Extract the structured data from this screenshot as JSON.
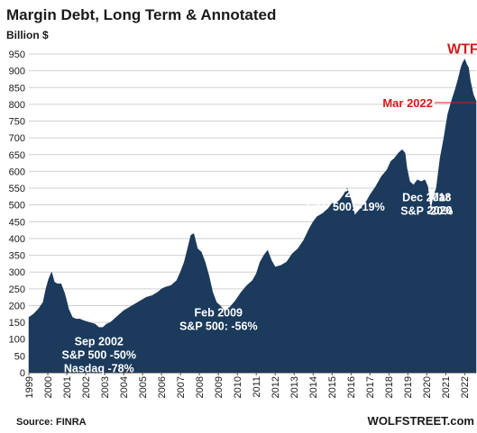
{
  "chart_data": {
    "type": "area",
    "title": "Margin Debt, Long Term & Annotated",
    "ylabel": "Billion $",
    "ylim": [
      0,
      950
    ],
    "yticks": [
      0,
      50,
      100,
      150,
      200,
      250,
      300,
      350,
      400,
      450,
      500,
      550,
      600,
      650,
      700,
      750,
      800,
      850,
      900,
      950
    ],
    "xlim": [
      1999.0,
      2022.6
    ],
    "xticks": [
      "1999",
      "2000",
      "2001",
      "2002",
      "2003",
      "2004",
      "2005",
      "2006",
      "2007",
      "2008",
      "2009",
      "2010",
      "2011",
      "2012",
      "2013",
      "2014",
      "2015",
      "2016",
      "2017",
      "2018",
      "2019",
      "2020",
      "2021",
      "2022"
    ],
    "grid": true,
    "color": "#1b3a5c",
    "series": [
      {
        "x": [
          1999.0,
          1999.25,
          1999.5,
          1999.75,
          1999.9,
          2000.05,
          2000.2,
          2000.35,
          2000.5,
          2000.7,
          2000.9,
          2001.1,
          2001.3,
          2001.5,
          2001.7,
          2001.9,
          2002.2,
          2002.5,
          2002.7,
          2002.9,
          2003.1,
          2003.3,
          2003.5,
          2003.8,
          2004.0,
          2004.3,
          2004.6,
          2004.9,
          2005.2,
          2005.5,
          2005.8,
          2006.0,
          2006.2,
          2006.5,
          2006.8,
          2007.0,
          2007.2,
          2007.4,
          2007.55,
          2007.7,
          2007.9,
          2008.1,
          2008.3,
          2008.5,
          2008.7,
          2008.9,
          2009.1,
          2009.3,
          2009.6,
          2009.9,
          2010.2,
          2010.5,
          2010.8,
          2011.0,
          2011.2,
          2011.4,
          2011.6,
          2011.8,
          2012.0,
          2012.3,
          2012.6,
          2012.9,
          2013.2,
          2013.5,
          2013.8,
          2014.0,
          2014.2,
          2014.5,
          2014.8,
          2015.0,
          2015.2,
          2015.4,
          2015.6,
          2015.8,
          2016.0,
          2016.2,
          2016.5,
          2016.8,
          2017.0,
          2017.3,
          2017.6,
          2017.9,
          2018.1,
          2018.3,
          2018.5,
          2018.7,
          2018.85,
          2018.95,
          2019.1,
          2019.3,
          2019.5,
          2019.7,
          2019.9,
          2020.05,
          2020.2,
          2020.35,
          2020.5,
          2020.7,
          2020.9,
          2021.1,
          2021.3,
          2021.5,
          2021.65,
          2021.8,
          2021.9,
          2022.0,
          2022.1,
          2022.2,
          2022.3,
          2022.45,
          2022.6
        ],
        "y": [
          165,
          175,
          190,
          210,
          250,
          280,
          300,
          270,
          265,
          265,
          235,
          190,
          165,
          160,
          160,
          155,
          150,
          145,
          135,
          135,
          145,
          150,
          160,
          175,
          185,
          195,
          205,
          215,
          225,
          230,
          240,
          250,
          255,
          260,
          275,
          300,
          330,
          375,
          410,
          415,
          370,
          360,
          330,
          290,
          240,
          210,
          200,
          185,
          195,
          215,
          240,
          260,
          275,
          295,
          330,
          350,
          365,
          335,
          315,
          320,
          330,
          355,
          370,
          395,
          430,
          450,
          465,
          475,
          490,
          505,
          505,
          515,
          530,
          550,
          515,
          470,
          490,
          510,
          530,
          555,
          585,
          605,
          630,
          640,
          655,
          665,
          655,
          610,
          570,
          560,
          575,
          570,
          575,
          555,
          480,
          525,
          550,
          640,
          700,
          770,
          810,
          845,
          875,
          910,
          925,
          935,
          920,
          910,
          870,
          830,
          810
        ]
      }
    ],
    "annotations": [
      {
        "lines": [
          "Sep 2002",
          "S&P 500 -50%",
          "Nasdaq -78%"
        ],
        "x": 2002.7,
        "y": 135
      },
      {
        "lines": [
          "Feb 2009",
          "S&P 500: -56%"
        ],
        "x": 2009.1,
        "y": 200
      },
      {
        "lines": [
          "Feb 2016",
          "S&P 500: -19%"
        ],
        "x": 2016.1,
        "y": 470
      },
      {
        "lines": [
          "Mar",
          "2020"
        ],
        "x": 2020.2,
        "y": 480
      },
      {
        "lines": [
          "Dec 2018",
          "S&P -20%"
        ],
        "x": 2018.95,
        "y": 570
      }
    ],
    "red_labels": [
      {
        "text": "WTF",
        "x": 2022.0,
        "y": 935
      },
      {
        "text": "Mar 2022",
        "x": 2022.2,
        "y": 805
      }
    ],
    "source": "Source: FINRA",
    "brand": "WOLFSTREET.com"
  }
}
